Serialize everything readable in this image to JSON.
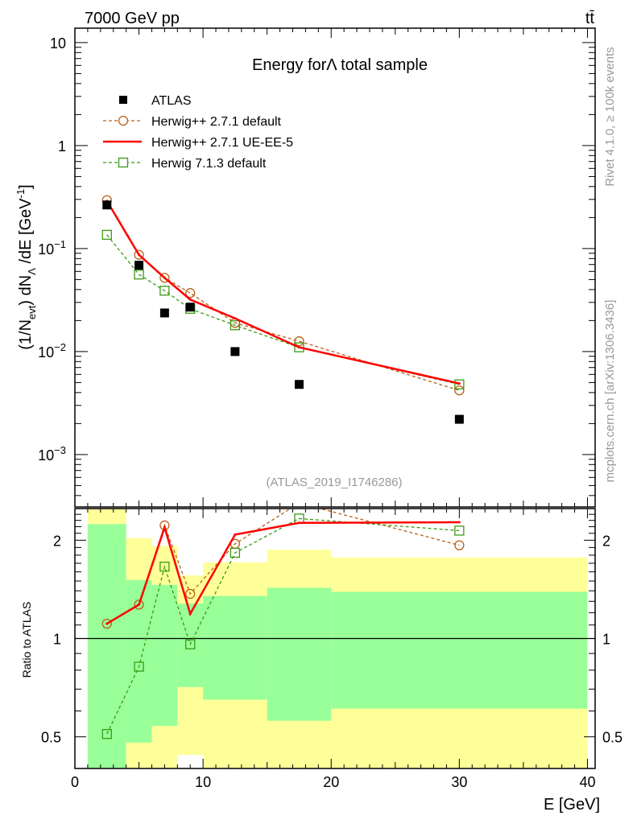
{
  "chart_data": [
    {
      "type": "scatter",
      "title": "Energy forΛ total sample",
      "header_left": "7000 GeV pp",
      "header_right": "tt̄",
      "ylabel": "(1/N_evt) dN_Λ/dE [GeV^-1]",
      "ylabel_parts": {
        "a": "(1/N",
        "b": "evt",
        "c": ") dN",
        "d": "Λ",
        "e": " /dE [GeV",
        "f": "-1",
        "g": "]"
      },
      "yscale": "log",
      "ylim": [
        0.00031,
        13.8
      ],
      "xlim": [
        0,
        40.6
      ],
      "yticks": [
        {
          "base": "10",
          "exp": "",
          "v": 10
        },
        {
          "base": "1",
          "exp": "",
          "v": 1
        },
        {
          "base": "10",
          "exp": "−1",
          "v": 0.1
        },
        {
          "base": "10",
          "exp": "−2",
          "v": 0.01
        },
        {
          "base": "10",
          "exp": "−3",
          "v": 0.001
        }
      ],
      "legend_position": "top-left",
      "x": [
        2.5,
        5,
        7,
        9,
        12.5,
        17.5,
        30
      ],
      "series": [
        {
          "name": "ATLAS",
          "style": "data",
          "color": "#000000",
          "values": [
            0.265,
            0.069,
            0.0237,
            0.027,
            0.01,
            0.0048,
            0.0022
          ]
        },
        {
          "name": "Herwig++ 2.7.1 default",
          "style": "circle-dashed",
          "color": "#b8621b",
          "values": [
            0.295,
            0.087,
            0.052,
            0.037,
            0.019,
            0.0126,
            0.0042
          ]
        },
        {
          "name": "Herwig++ 2.7.1 UE-EE-5",
          "style": "solid",
          "color": "#ff0000",
          "values": [
            0.29,
            0.087,
            0.052,
            0.032,
            0.021,
            0.011,
            0.0049
          ]
        },
        {
          "name": "Herwig 7.1.3 default",
          "style": "square-dashed",
          "color": "#3a9a12",
          "values": [
            0.136,
            0.056,
            0.039,
            0.026,
            0.018,
            0.011,
            0.0048
          ]
        }
      ],
      "annotation": "(ATLAS_2019_I1746286)",
      "side_text_top": "Rivet 4.1.0, ≥ 100k events",
      "side_text_bottom": "mcplots.cern.ch [arXiv:1306.3436]"
    },
    {
      "type": "line",
      "ylabel": "Ratio to ATLAS",
      "xlabel": "E [GeV]",
      "yscale": "log",
      "ylim": [
        0.4,
        2.5
      ],
      "xlim": [
        0,
        40.6
      ],
      "xticks": [
        "0",
        "10",
        "20",
        "30",
        "40"
      ],
      "yticks": [
        {
          "label": "2",
          "v": 2
        },
        {
          "label": "1",
          "v": 1
        },
        {
          "label": "0.5",
          "v": 0.5
        }
      ],
      "x": [
        2.5,
        5,
        7,
        9,
        12.5,
        17.5,
        30
      ],
      "bands": {
        "edges": [
          1,
          4,
          6,
          8,
          10,
          15,
          20,
          40
        ],
        "green_hi": [
          2.24,
          1.51,
          1.46,
          1.28,
          1.35,
          1.43,
          1.39
        ],
        "green_lo": [
          0.3,
          0.48,
          0.54,
          0.71,
          0.65,
          0.56,
          0.61
        ],
        "yellow_hi": [
          3.0,
          2.03,
          1.92,
          1.56,
          1.71,
          1.87,
          1.77
        ],
        "yellow_lo": [
          0.3,
          0.3,
          0.3,
          0.44,
          0.3,
          0.3,
          0.3
        ],
        "green_color": "#99ff99",
        "yellow_color": "#ffff99"
      },
      "series": [
        {
          "name": "Herwig++ 2.7.1 default",
          "color": "#b8621b",
          "values": [
            1.11,
            1.27,
            2.22,
            1.37,
            1.95,
            2.6,
            1.93
          ]
        },
        {
          "name": "Herwig++ 2.7.1 UE-EE-5",
          "color": "#ff0000",
          "values": [
            1.11,
            1.27,
            2.19,
            1.19,
            2.08,
            2.26,
            2.27
          ]
        },
        {
          "name": "Herwig 7.1.3 default",
          "color": "#3a9a12",
          "values": [
            0.51,
            0.82,
            1.66,
            0.96,
            1.83,
            2.33,
            2.14
          ]
        }
      ]
    }
  ]
}
